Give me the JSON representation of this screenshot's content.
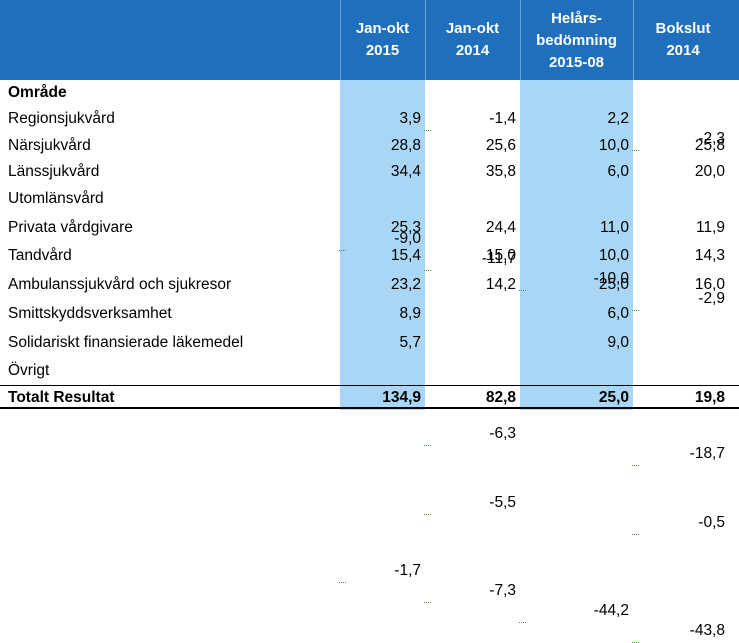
{
  "columns": [
    {
      "line1": "Jan-okt",
      "line2": "2015",
      "line3": ""
    },
    {
      "line1": "Jan-okt",
      "line2": "2014",
      "line3": ""
    },
    {
      "line1": "Helårs-",
      "line2": "bedömning",
      "line3": "2015-08"
    },
    {
      "line1": "Bokslut",
      "line2": "2014",
      "line3": ""
    }
  ],
  "section_label": "Område",
  "rows": [
    {
      "name": "Regionsjukvård",
      "values": [
        "3,9",
        "-1,4",
        "2,2",
        "-2,3"
      ]
    },
    {
      "name": "Närsjukvård",
      "values": [
        "28,8",
        "25,6",
        "10,0",
        "25,8"
      ]
    },
    {
      "name": "Länssjukvård",
      "values": [
        "34,4",
        "35,8",
        "6,0",
        "20,0"
      ]
    },
    {
      "name": "Utomlänsvård",
      "values": [
        "-9,0",
        "-11,7",
        "-10,0",
        "-2,9"
      ]
    },
    {
      "name": "Privata vårdgivare",
      "values": [
        "25,3",
        "24,4",
        "11,0",
        "11,9"
      ]
    },
    {
      "name": "Tandvård",
      "values": [
        "15,4",
        "15,0",
        "10,0",
        "14,3"
      ]
    },
    {
      "name": "Ambulanssjukvård och sjukresor",
      "values": [
        "23,2",
        "14,2",
        "25,0",
        "16,0"
      ]
    },
    {
      "name": "Smittskyddsverksamhet",
      "values": [
        "8,9",
        "-6,3",
        "6,0",
        "-18,7"
      ]
    },
    {
      "name": "Solidariskt finansierade läkemedel",
      "values": [
        "5,7",
        "-5,5",
        "9,0",
        "-0,5"
      ]
    },
    {
      "name": "Övrigt",
      "values": [
        "-1,7",
        "-7,3",
        "-44,2",
        "-43,8"
      ]
    }
  ],
  "total": {
    "name": "Totalt Resultat",
    "values": [
      "134,9",
      "82,8",
      "25,0",
      "19,8"
    ]
  },
  "colors": {
    "header_bg": "#1f6fbd",
    "highlight": "#a9d6f5"
  }
}
